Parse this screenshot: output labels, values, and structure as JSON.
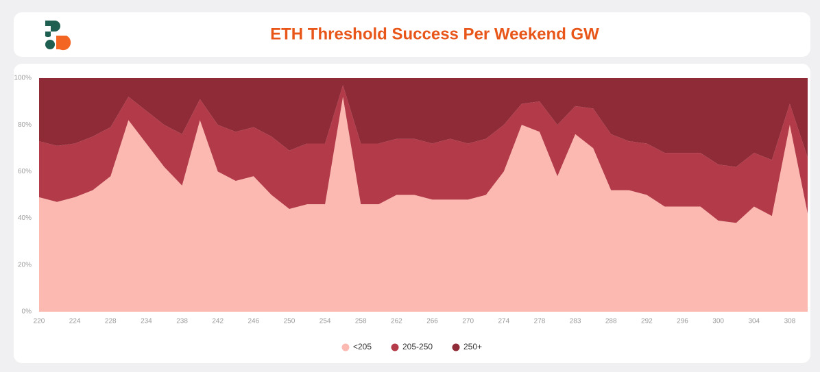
{
  "chart_data": {
    "type": "stacked_area",
    "title": "ETH Threshold Success Per Weekend GW",
    "categories": [
      "220",
      null,
      "224",
      null,
      "228",
      null,
      "234",
      null,
      "238",
      null,
      "242",
      null,
      "246",
      null,
      "250",
      null,
      "254",
      null,
      "258",
      null,
      "262",
      null,
      "266",
      null,
      "270",
      null,
      "274",
      null,
      "278",
      null,
      "283",
      null,
      "288",
      null,
      "292",
      null,
      "296",
      null,
      "300",
      null,
      "304",
      null,
      "308",
      null
    ],
    "series": [
      {
        "name": "<205",
        "color": "#fbb9b1",
        "values": [
          49,
          47,
          49,
          52,
          58,
          82,
          72,
          62,
          54,
          82,
          60,
          56,
          58,
          50,
          44,
          46,
          46,
          92,
          46,
          46,
          50,
          50,
          48,
          48,
          48,
          50,
          60,
          80,
          77,
          58,
          76,
          70,
          52,
          52,
          50,
          45,
          45,
          45,
          39,
          38,
          45,
          41,
          80,
          42
        ]
      },
      {
        "name": "205-250",
        "color": "#b33a48",
        "values": [
          24,
          24,
          23,
          23,
          21,
          10,
          14,
          18,
          22,
          9,
          20,
          21,
          21,
          25,
          25,
          26,
          26,
          5,
          26,
          26,
          24,
          24,
          24,
          26,
          24,
          24,
          20,
          9,
          13,
          22,
          12,
          17,
          24,
          21,
          22,
          23,
          23,
          23,
          24,
          24,
          23,
          24,
          9,
          24
        ]
      },
      {
        "name": "250+",
        "color": "#8e2b37",
        "values": [
          27,
          29,
          28,
          25,
          21,
          8,
          14,
          20,
          24,
          9,
          20,
          23,
          21,
          25,
          31,
          28,
          28,
          3,
          28,
          28,
          26,
          26,
          28,
          26,
          28,
          26,
          20,
          11,
          10,
          20,
          12,
          13,
          24,
          27,
          28,
          32,
          32,
          32,
          37,
          38,
          32,
          35,
          11,
          34
        ]
      }
    ],
    "ylim": [
      0,
      100
    ],
    "yticks": [
      {
        "value": 0,
        "label": "0%"
      },
      {
        "value": 20,
        "label": "20%"
      },
      {
        "value": 40,
        "label": "40%"
      },
      {
        "value": 60,
        "label": "60%"
      },
      {
        "value": 80,
        "label": "80%"
      },
      {
        "value": 100,
        "label": "100%"
      }
    ],
    "grid": false
  }
}
